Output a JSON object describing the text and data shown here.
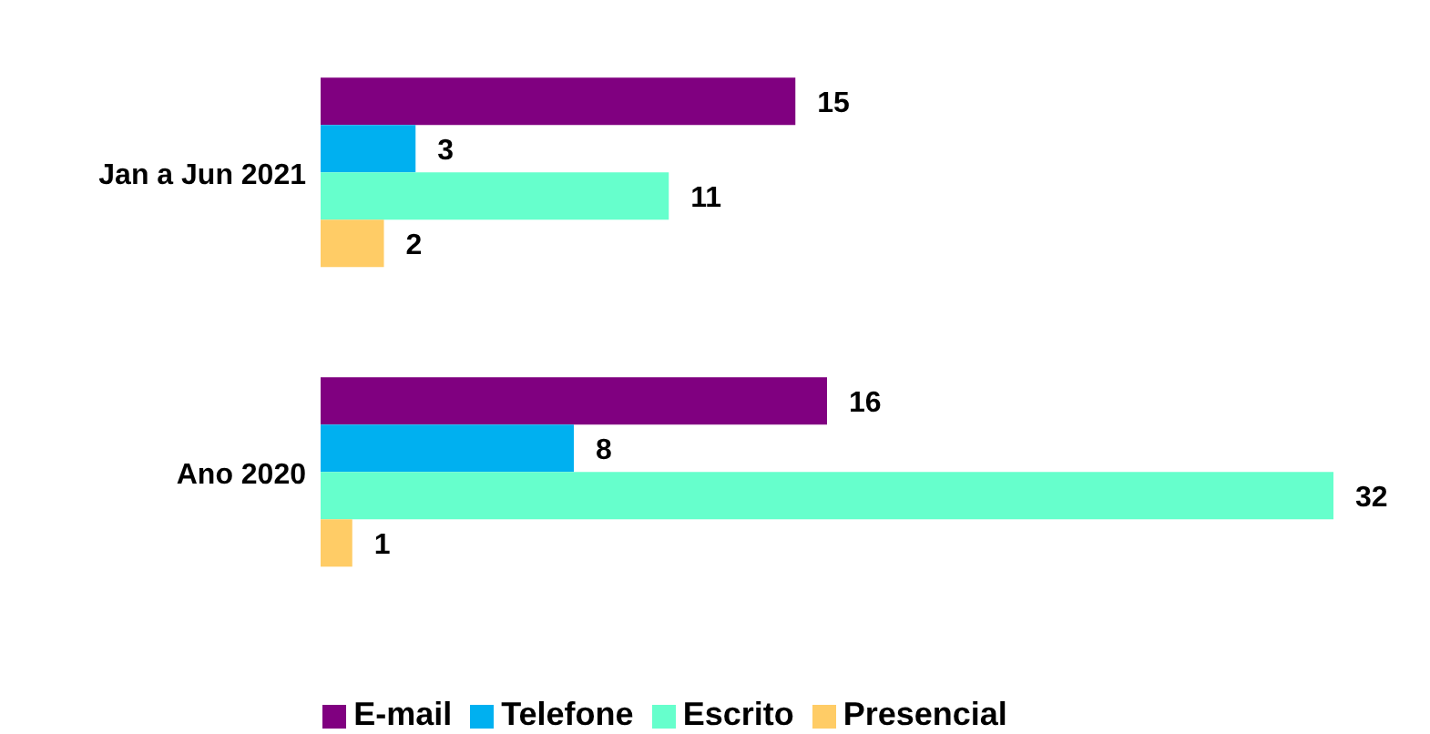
{
  "chart_data": {
    "type": "bar",
    "orientation": "horizontal",
    "categories": [
      "Jan a Jun 2021",
      "Ano 2020"
    ],
    "series": [
      {
        "name": "E-mail",
        "color": "#800080",
        "values": [
          15,
          16
        ]
      },
      {
        "name": "Telefone",
        "color": "#00b0f0",
        "values": [
          3,
          8
        ]
      },
      {
        "name": "Escrito",
        "color": "#66ffcc",
        "values": [
          11,
          32
        ]
      },
      {
        "name": "Presencial",
        "color": "#ffcc66",
        "values": [
          2,
          1
        ]
      }
    ],
    "data_labels": true,
    "legend": "bottom",
    "grid": false
  }
}
